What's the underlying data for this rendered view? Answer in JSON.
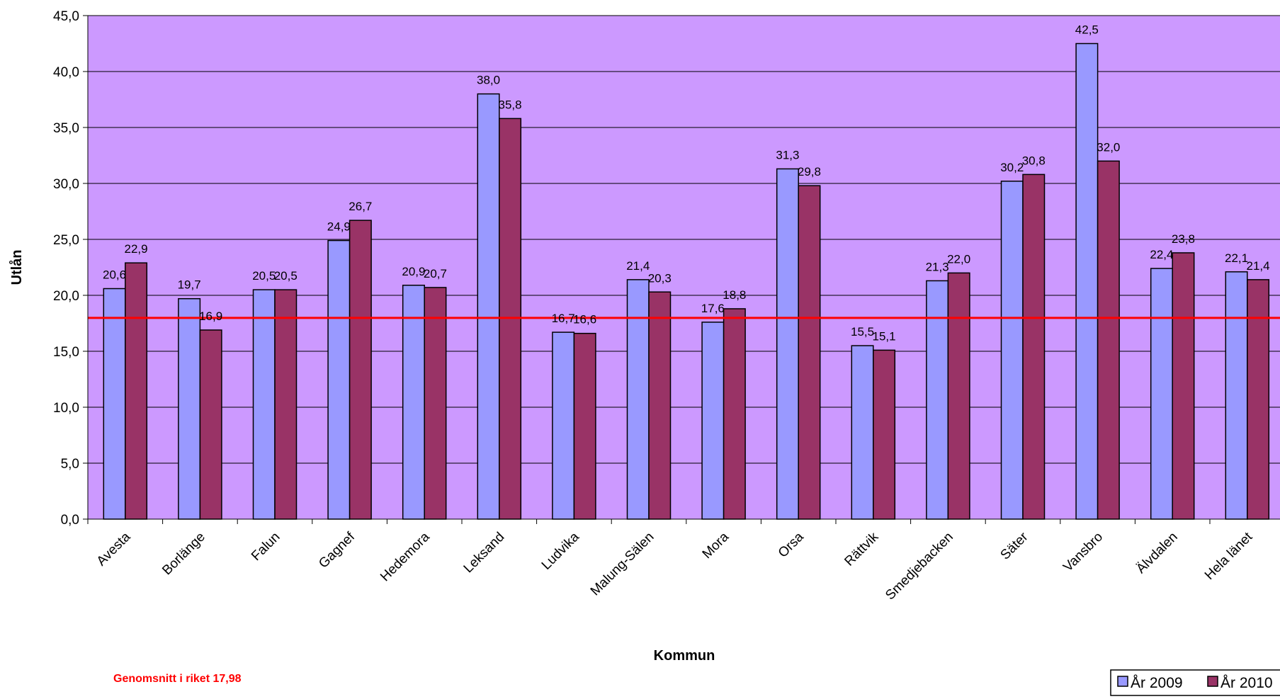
{
  "chart_data": {
    "type": "bar",
    "title": "",
    "xlabel": "Kommun",
    "ylabel": "Utlån",
    "ylim": [
      0,
      45
    ],
    "ytick_step": 5,
    "ytick_labels": [
      "0,0",
      "5,0",
      "10,0",
      "15,0",
      "20,0",
      "25,0",
      "30,0",
      "35,0",
      "40,0",
      "45,0"
    ],
    "grid": true,
    "legend_position": "bottom-right",
    "categories": [
      "Avesta",
      "Borlänge",
      "Falun",
      "Gagnef",
      "Hedemora",
      "Leksand",
      "Ludvika",
      "Malung-Sälen",
      "Mora",
      "Orsa",
      "Rättvik",
      "Smedjebacken",
      "Säter",
      "Vansbro",
      "Älvdalen",
      "Hela länet"
    ],
    "series": [
      {
        "name": "År 2009",
        "color": "#9999ff",
        "values": [
          20.6,
          19.7,
          20.5,
          24.9,
          20.9,
          38.0,
          16.7,
          21.4,
          17.6,
          31.3,
          15.5,
          21.3,
          30.2,
          42.5,
          22.4,
          22.1
        ],
        "labels": [
          "20,6",
          "19,7",
          "20,5",
          "24,9",
          "20,9",
          "38,0",
          "16,7",
          "21,4",
          "17,6",
          "31,3",
          "15,5",
          "21,3",
          "30,2",
          "42,5",
          "22,4",
          "22,1"
        ]
      },
      {
        "name": "År 2010",
        "color": "#993366",
        "values": [
          22.9,
          16.9,
          20.5,
          26.7,
          20.7,
          35.8,
          16.6,
          20.3,
          18.8,
          29.8,
          15.1,
          22.0,
          30.8,
          32.0,
          23.8,
          21.4
        ],
        "labels": [
          "22,9",
          "16,9",
          "20,5",
          "26,7",
          "20,7",
          "35,8",
          "16,6",
          "20,3",
          "18,8",
          "29,8",
          "15,1",
          "22,0",
          "30,8",
          "32,0",
          "23,8",
          "21,4"
        ]
      }
    ],
    "reference_line": {
      "value": 17.98,
      "color": "#ff0000"
    },
    "plot_background": "#cc99ff",
    "note": "Genomsnitt i riket 17,98"
  }
}
